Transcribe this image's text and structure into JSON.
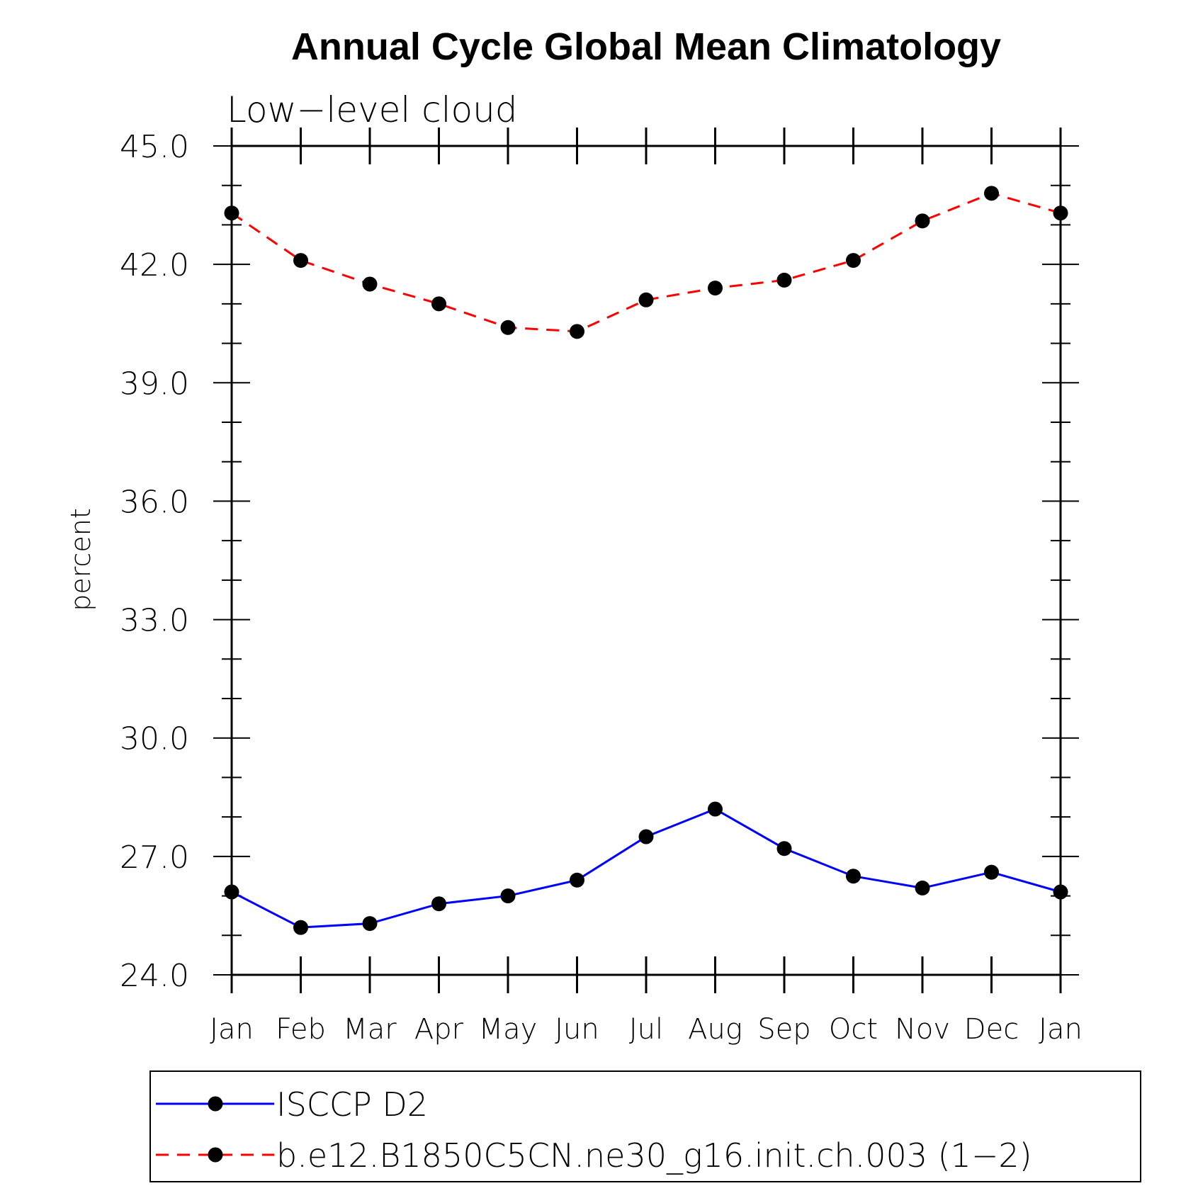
{
  "chart_data": {
    "type": "line",
    "title": "Annual Cycle Global Mean Climatology",
    "subtitle": "Low−level cloud",
    "ylabel": "percent",
    "xlabel": "",
    "categories": [
      "Jan",
      "Feb",
      "Mar",
      "Apr",
      "May",
      "Jun",
      "Jul",
      "Aug",
      "Sep",
      "Oct",
      "Nov",
      "Dec",
      "Jan"
    ],
    "ylim": [
      24.0,
      45.0
    ],
    "yticks": [
      "24.0",
      "27.0",
      "30.0",
      "33.0",
      "36.0",
      "39.0",
      "42.0",
      "45.0"
    ],
    "grid": false,
    "legend_position": "bottom",
    "series": [
      {
        "name": "ISCCP D2",
        "color": "#0000ff",
        "dash": "solid",
        "marker": "circle",
        "values": [
          26.1,
          25.2,
          25.3,
          25.8,
          26.0,
          26.4,
          27.5,
          28.2,
          27.2,
          26.5,
          26.2,
          26.6,
          26.1
        ]
      },
      {
        "name": "b.e12.B1850C5CN.ne30_g16.init.ch.003 (1−2)",
        "color": "#ff0000",
        "dash": "dashed",
        "marker": "circle",
        "values": [
          43.3,
          42.1,
          41.5,
          41.0,
          40.4,
          40.3,
          41.1,
          41.4,
          41.6,
          42.1,
          43.1,
          43.8,
          43.3
        ]
      }
    ]
  }
}
